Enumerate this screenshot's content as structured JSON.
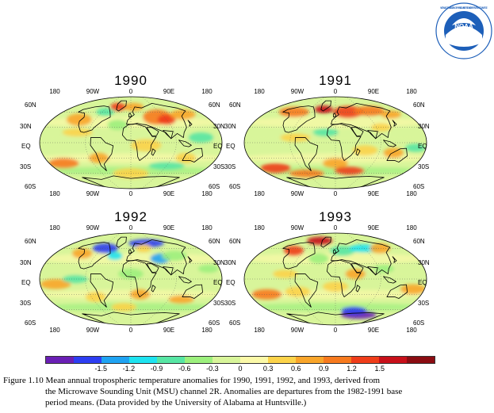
{
  "logo": {
    "name": "NOAA",
    "ring_text": "NATIONAL OCEANIC AND ATMOSPHERIC ADMINISTRATION · U.S. DEPARTMENT OF COMMERCE",
    "colors": {
      "bird": "#ffffff",
      "sky": "#1d5fb9",
      "ring": "#ffffff"
    }
  },
  "panels": [
    {
      "year": "1990"
    },
    {
      "year": "1991"
    },
    {
      "year": "1992"
    },
    {
      "year": "1993"
    }
  ],
  "axes": {
    "lon_labels": [
      "180",
      "90W",
      "0",
      "90E",
      "180"
    ],
    "lat_labels_left": [
      "60N",
      "30N",
      "EQ",
      "30S",
      "60S"
    ],
    "lat_labels_right": [
      "60N",
      "30N",
      "EQ",
      "30S",
      "60S"
    ]
  },
  "colorbar": {
    "colors": [
      "#6a1fb5",
      "#2d3ef2",
      "#1fa3f2",
      "#1ee3f0",
      "#57e6a4",
      "#9cf07d",
      "#d8f59a",
      "#fbf9a8",
      "#fcd34a",
      "#f9a52a",
      "#f77a1e",
      "#ef3d1a",
      "#c8101a",
      "#8b0c12"
    ],
    "labels": [
      "-1.5",
      "-1.2",
      "-0.9",
      "-0.6",
      "-0.3",
      "0",
      "0.3",
      "0.6",
      "0.9",
      "1.2",
      "1.5"
    ]
  },
  "caption": {
    "line1": "Figure 1.10 Mean annual tropospheric temperature anomalies for 1990, 1991, 1992, and 1993, derived from",
    "line2": "the Microwave Sounding Unit (MSU) channel 2R. Anomalies are departures from the 1982-1991 base",
    "line3": "period means. (Data provided by the University of Alabama at Huntsville.)"
  }
}
